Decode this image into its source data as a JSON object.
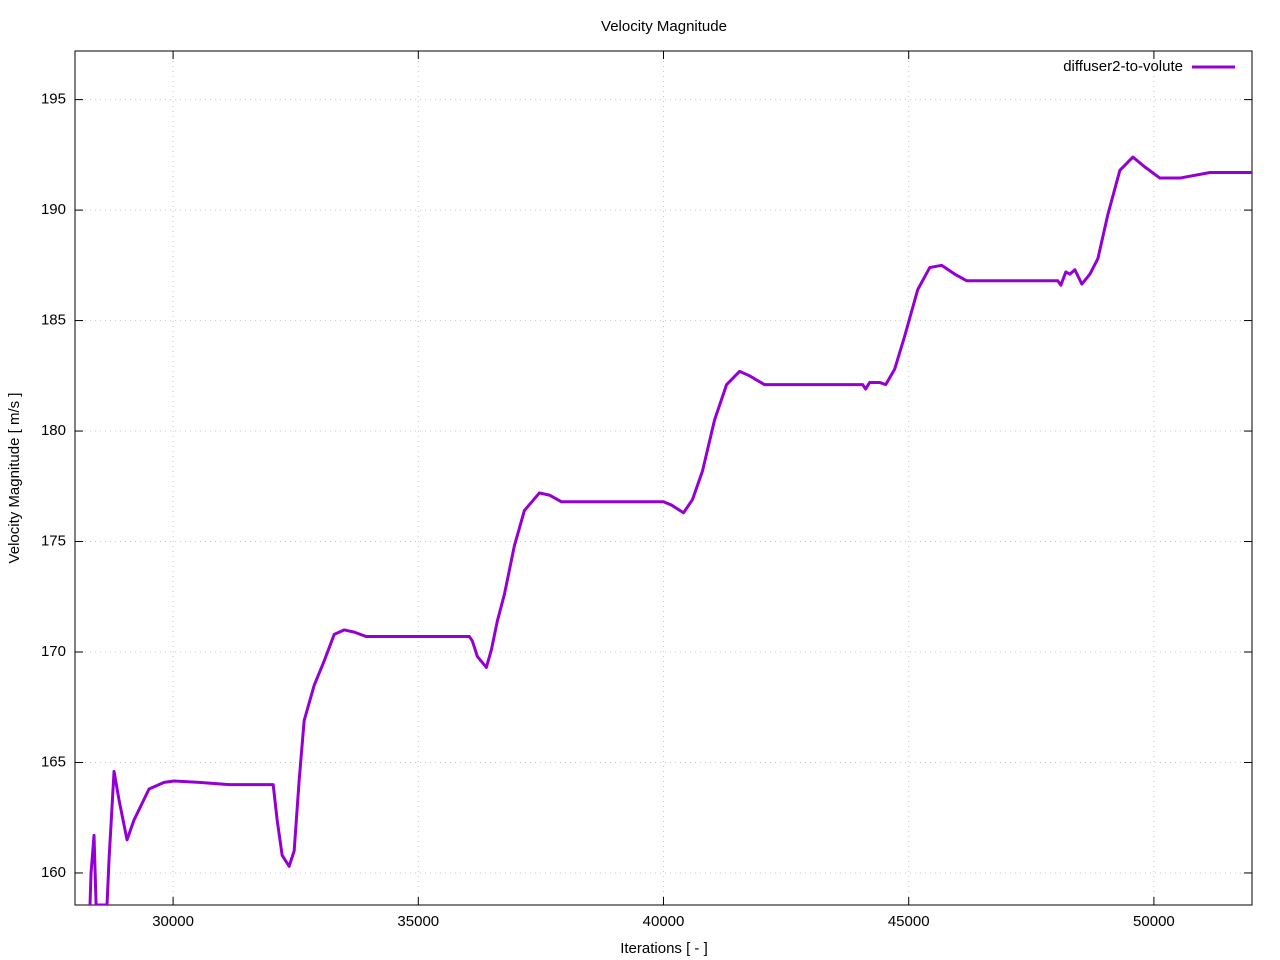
{
  "chart_data": {
    "type": "line",
    "title": "Velocity Magnitude",
    "xlabel": "Iterations [ - ]",
    "ylabel": "Velocity Magnitude [ m/s ]",
    "xlim": [
      28000,
      52000
    ],
    "ylim": [
      158.55,
      197.2
    ],
    "xticks": [
      30000,
      35000,
      40000,
      45000,
      50000
    ],
    "yticks": [
      160,
      165,
      170,
      175,
      180,
      185,
      190,
      195
    ],
    "grid": true,
    "legend": "upper right",
    "x": [
      28306,
      28327,
      28388,
      28430,
      28653,
      28694,
      28796,
      28898,
      29061,
      29204,
      29510,
      29816,
      30020,
      30531,
      31143,
      32041,
      32122,
      32224,
      32367,
      32469,
      32571,
      32673,
      32878,
      33082,
      33286,
      33490,
      33694,
      33939,
      36041,
      36102,
      36204,
      36388,
      36490,
      36612,
      36755,
      36959,
      37163,
      37469,
      37673,
      37918,
      40000,
      40163,
      40408,
      40592,
      40796,
      41041,
      41286,
      41551,
      41755,
      42061,
      44061,
      44122,
      44204,
      44408,
      44531,
      44714,
      44918,
      45184,
      45429,
      45673,
      45939,
      46184,
      48041,
      48102,
      48204,
      48286,
      48388,
      48531,
      48694,
      48857,
      49061,
      49306,
      49571,
      49816,
      50122,
      50531,
      51143,
      52000
    ],
    "series": [
      {
        "name": "diffuser2-to-volute",
        "color": "#9400d3",
        "values": [
          158.55,
          160,
          161.7,
          158.55,
          158.55,
          160.6,
          164.6,
          163.3,
          161.5,
          162.4,
          163.8,
          164.1,
          164.16,
          164.1,
          164.0,
          164.0,
          162.4,
          160.8,
          160.3,
          161.0,
          164.2,
          166.9,
          168.5,
          169.6,
          170.8,
          171.0,
          170.9,
          170.7,
          170.7,
          170.5,
          169.8,
          169.3,
          170.1,
          171.4,
          172.6,
          174.8,
          176.4,
          177.2,
          177.1,
          176.8,
          176.8,
          176.65,
          176.3,
          176.9,
          178.2,
          180.5,
          182.1,
          182.7,
          182.5,
          182.1,
          182.1,
          181.9,
          182.2,
          182.2,
          182.1,
          182.8,
          184.3,
          186.4,
          187.4,
          187.5,
          187.1,
          186.8,
          186.8,
          186.6,
          187.2,
          187.1,
          187.3,
          186.65,
          187.1,
          187.8,
          189.8,
          191.8,
          192.4,
          191.95,
          191.45,
          191.45,
          191.7,
          191.7
        ]
      }
    ]
  }
}
